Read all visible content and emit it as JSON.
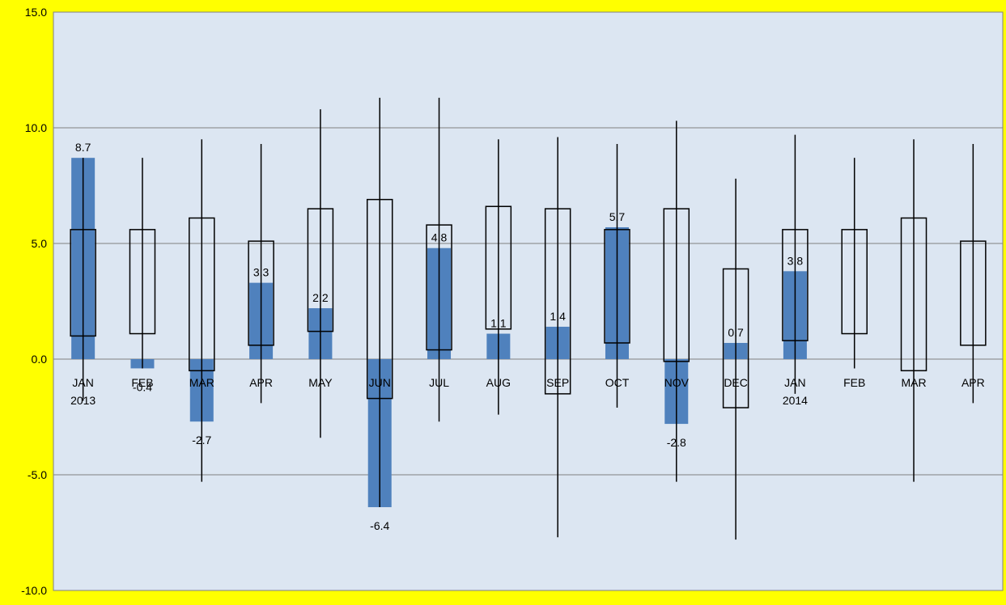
{
  "chart_data": {
    "type": "bar",
    "title": "",
    "xlabel": "",
    "ylabel": "",
    "ylim": [
      -10,
      15
    ],
    "yticks": [
      15,
      10,
      5,
      0,
      -5,
      -10
    ],
    "ytick_labels": [
      "15.0",
      "10.0",
      "5.0",
      "0.0",
      "-5.0",
      "-10.0"
    ],
    "grid": true,
    "legend": "none",
    "categories": [
      "JAN",
      "FEB",
      "MAR",
      "APR",
      "MAY",
      "JUN",
      "JUL",
      "AUG",
      "SEP",
      "OCT",
      "NOV",
      "DEC",
      "JAN",
      "FEB",
      "MAR",
      "APR"
    ],
    "year_labels": [
      "2013",
      "",
      "",
      "",
      "",
      "",
      "",
      "",
      "",
      "",
      "",
      "",
      "2014",
      "",
      "",
      ""
    ],
    "series": [
      {
        "values": [
          8.7,
          -0.4,
          -2.7,
          3.3,
          2.2,
          -6.4,
          4.8,
          1.1,
          1.4,
          5.7,
          -2.8,
          0.7,
          3.8,
          null,
          null,
          null
        ],
        "data_labels": [
          "8.7",
          "-0.4",
          "-2.7",
          "3.3",
          "2.2",
          "-6.4",
          "4.8",
          "1.1",
          "1.4",
          "5.7",
          "-2.8",
          "0.7",
          "3.8",
          "",
          "",
          ""
        ],
        "color": "#4f81bd"
      }
    ],
    "ranges": {
      "box_low": [
        1.0,
        1.1,
        -0.5,
        0.6,
        1.2,
        -1.7,
        0.4,
        1.3,
        -1.5,
        0.7,
        -0.1,
        -2.1,
        0.8,
        1.1,
        -0.5,
        0.6
      ],
      "box_high": [
        5.6,
        5.6,
        6.1,
        5.1,
        6.5,
        6.9,
        5.8,
        6.6,
        6.5,
        5.6,
        6.5,
        3.9,
        5.6,
        5.6,
        6.1,
        5.1
      ],
      "whisker_low": [
        -1.8,
        -0.4,
        -5.3,
        -1.9,
        -3.4,
        -6.4,
        -2.7,
        -2.4,
        -7.7,
        -2.1,
        -5.3,
        -7.8,
        -1.5,
        -0.4,
        -5.3,
        -1.9
      ],
      "whisker_high": [
        8.7,
        8.7,
        9.5,
        9.3,
        10.8,
        11.3,
        11.3,
        9.5,
        9.6,
        9.3,
        10.3,
        7.8,
        9.7,
        8.7,
        9.5,
        9.3
      ]
    },
    "colors": {
      "background": "#ffff00",
      "plot_area": "#dce6f2",
      "gridline": "#808080",
      "bar": "#4f81bd",
      "box": "#000000"
    }
  }
}
